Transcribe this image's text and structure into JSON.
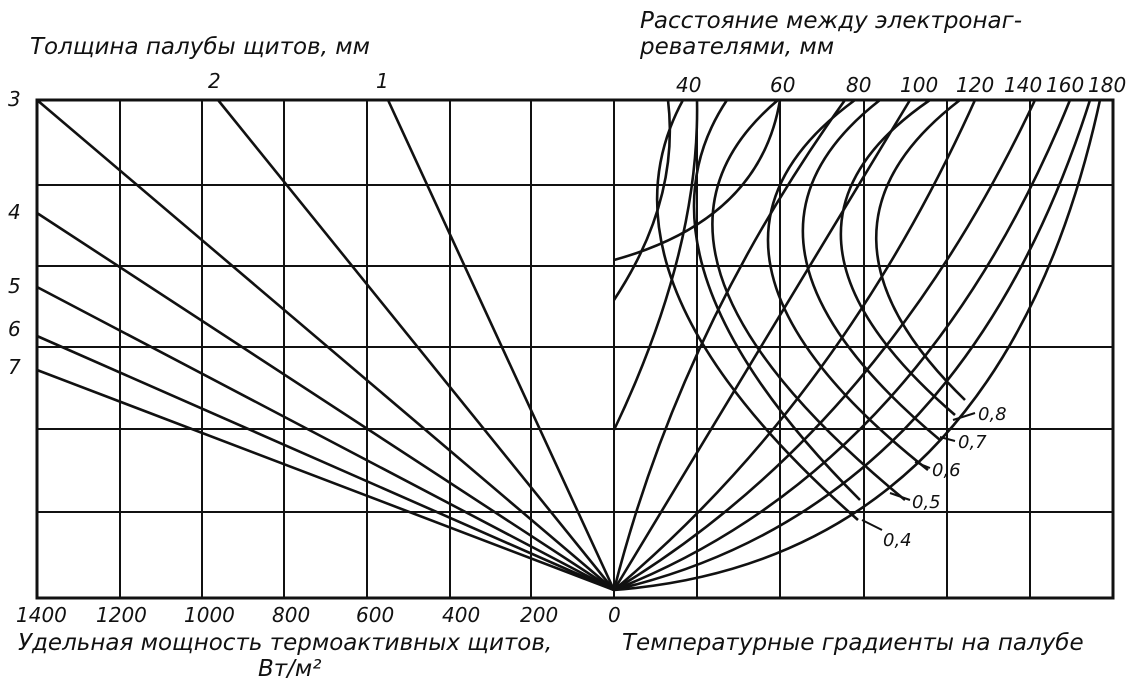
{
  "chart_data": {
    "type": "line",
    "left_panel": {
      "title": "Толщина палубы щитов, мм",
      "xlabel": "Удельная мощность термоактивных щитов,",
      "xunit": "Вт/м²",
      "x_ticks": [
        "1400",
        "1200",
        "1000",
        "800",
        "600",
        "400",
        "200",
        "0"
      ],
      "xlim": [
        1400,
        0
      ],
      "thickness_labels_top": [
        "2",
        "1"
      ],
      "thickness_labels_left": [
        "3",
        "4",
        "5",
        "6",
        "7"
      ],
      "series": [
        {
          "name": "1",
          "end_x": 550
        },
        {
          "name": "2",
          "end_x": 960
        },
        {
          "name": "3",
          "end_x": 1400
        },
        {
          "name": "4",
          "end_x": 1400
        },
        {
          "name": "5",
          "end_x": 1400
        },
        {
          "name": "6",
          "end_x": 1400
        },
        {
          "name": "7",
          "end_x": 1400
        }
      ]
    },
    "right_panel": {
      "title": "Расстояние между электронаг-ревателями, мм",
      "title_lines": [
        "Расстояние между электронаг-",
        "ревателями, мм"
      ],
      "xlabel": "Температурные градиенты на палубе",
      "spacing_labels": [
        "40",
        "60",
        "80",
        "100",
        "120",
        "140",
        "160",
        "180"
      ],
      "gradient_labels": [
        "0,8",
        "0,7",
        "0,6",
        "0,5",
        "0,4"
      ],
      "grid": true
    }
  }
}
